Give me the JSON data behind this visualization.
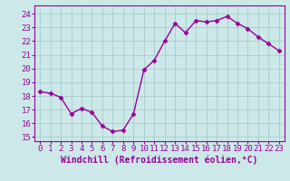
{
  "x": [
    0,
    1,
    2,
    3,
    4,
    5,
    6,
    7,
    8,
    9,
    10,
    11,
    12,
    13,
    14,
    15,
    16,
    17,
    18,
    19,
    20,
    21,
    22,
    23
  ],
  "y": [
    18.3,
    18.2,
    17.9,
    16.7,
    17.1,
    16.8,
    15.8,
    15.4,
    15.5,
    16.7,
    19.9,
    20.6,
    22.0,
    23.3,
    22.6,
    23.5,
    23.4,
    23.5,
    23.8,
    23.3,
    22.9,
    22.3,
    21.8,
    21.3
  ],
  "line_color": "#990099",
  "marker": "D",
  "marker_size": 2.5,
  "line_width": 1.0,
  "bg_color": "#cce8e8",
  "grid_color": "#aacccc",
  "xlabel": "Windchill (Refroidissement éolien,°C)",
  "xlabel_fontsize": 7,
  "ylabel_ticks": [
    15,
    16,
    17,
    18,
    19,
    20,
    21,
    22,
    23,
    24
  ],
  "xlim": [
    -0.5,
    23.5
  ],
  "ylim": [
    14.7,
    24.6
  ],
  "tick_fontsize": 6.5,
  "xtick_labels": [
    "0",
    "1",
    "2",
    "3",
    "4",
    "5",
    "6",
    "7",
    "8",
    "9",
    "10",
    "11",
    "12",
    "13",
    "14",
    "15",
    "16",
    "17",
    "18",
    "19",
    "20",
    "21",
    "22",
    "23"
  ],
  "spine_color": "#990099"
}
